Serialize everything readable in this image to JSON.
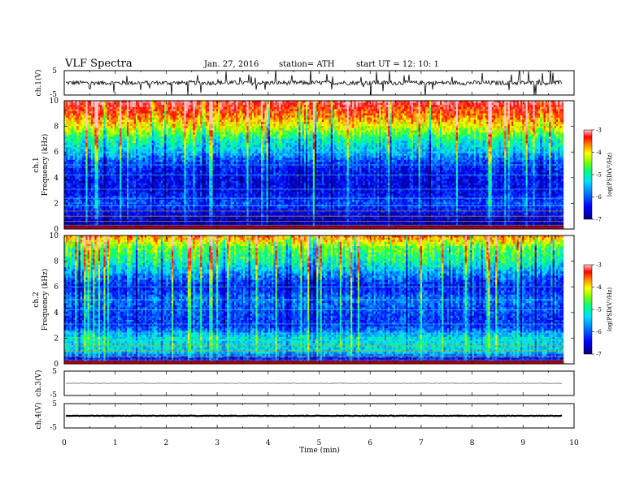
{
  "header": {
    "title": "VLF  Spectra",
    "date": "Jan. 27, 2016",
    "station": "station= ATH",
    "start": "start  UT =   12: 10: 1"
  },
  "chart_data": {
    "type": "heatmap",
    "title": "VLF  Spectra",
    "xlabel": "Time  (min)",
    "xlim": [
      0,
      10
    ],
    "x_ticks": [
      "0",
      "1",
      "2",
      "3",
      "4",
      "5",
      "6",
      "7",
      "8",
      "9",
      "10"
    ],
    "data_extent_min": 9.8,
    "panels": [
      {
        "id": "ch1-waveform",
        "kind": "waveform",
        "ylabel": "ch.1(V)",
        "ylim": [
          -5,
          5
        ],
        "y_ticks": [
          "5",
          "-5"
        ],
        "color": "#000000",
        "note_level": 0
      },
      {
        "id": "ch1-spectrogram",
        "kind": "spectrogram",
        "ylabel_channel": "ch.1",
        "ylabel": "Frequency  (kHz)",
        "ylim": [
          0,
          10
        ],
        "y_ticks": [
          "0",
          "2",
          "4",
          "6",
          "8",
          "10"
        ],
        "colorbar": {
          "label": "log(PSD(V²/Hz)",
          "range": [
            -7,
            -3
          ],
          "ticks": [
            "-3",
            "-4",
            "-5",
            "-6",
            "-7"
          ]
        },
        "profile": [
          {
            "f": 10,
            "logpsd": -3.3
          },
          {
            "f": 9,
            "logpsd": -3.9
          },
          {
            "f": 8,
            "logpsd": -4.5
          },
          {
            "f": 7,
            "logpsd": -5.3
          },
          {
            "f": 6,
            "logpsd": -5.7
          },
          {
            "f": 5,
            "logpsd": -6.3
          },
          {
            "f": 4,
            "logpsd": -6.5
          },
          {
            "f": 3,
            "logpsd": -6.5
          },
          {
            "f": 2,
            "logpsd": -6.2
          },
          {
            "f": 1,
            "logpsd": -6.6
          },
          {
            "f": 0,
            "logpsd": -6.9
          }
        ]
      },
      {
        "id": "ch2-spectrogram",
        "kind": "spectrogram",
        "ylabel_channel": "ch.2",
        "ylabel": "Frequency  (kHz)",
        "ylim": [
          0,
          10
        ],
        "y_ticks": [
          "0",
          "2",
          "4",
          "6",
          "8",
          "10"
        ],
        "colorbar": {
          "label": "log(PSD(V²/Hz)",
          "range": [
            -7,
            -3
          ],
          "ticks": [
            "-3",
            "-4",
            "-5",
            "-6",
            "-7"
          ]
        },
        "profile": [
          {
            "f": 10,
            "logpsd": -4.0
          },
          {
            "f": 9,
            "logpsd": -5.0
          },
          {
            "f": 8,
            "logpsd": -5.3
          },
          {
            "f": 7,
            "logpsd": -5.9
          },
          {
            "f": 6,
            "logpsd": -6.4
          },
          {
            "f": 5,
            "logpsd": -6.0
          },
          {
            "f": 4,
            "logpsd": -6.2
          },
          {
            "f": 3,
            "logpsd": -6.3
          },
          {
            "f": 2,
            "logpsd": -5.5
          },
          {
            "f": 1,
            "logpsd": -5.6
          },
          {
            "f": 0,
            "logpsd": -6.9
          }
        ]
      },
      {
        "id": "ch3-waveform",
        "kind": "waveform",
        "ylabel": "ch.3(V)",
        "ylim": [
          -5,
          5
        ],
        "y_ticks": [
          "5",
          "-5"
        ],
        "color": "#888888",
        "note_level": 0
      },
      {
        "id": "ch4-waveform",
        "kind": "waveform",
        "ylabel": "ch.4(V)",
        "ylim": [
          -5,
          5
        ],
        "y_ticks": [
          "5",
          "-5"
        ],
        "color": "#000000",
        "note_level": 0
      }
    ]
  }
}
